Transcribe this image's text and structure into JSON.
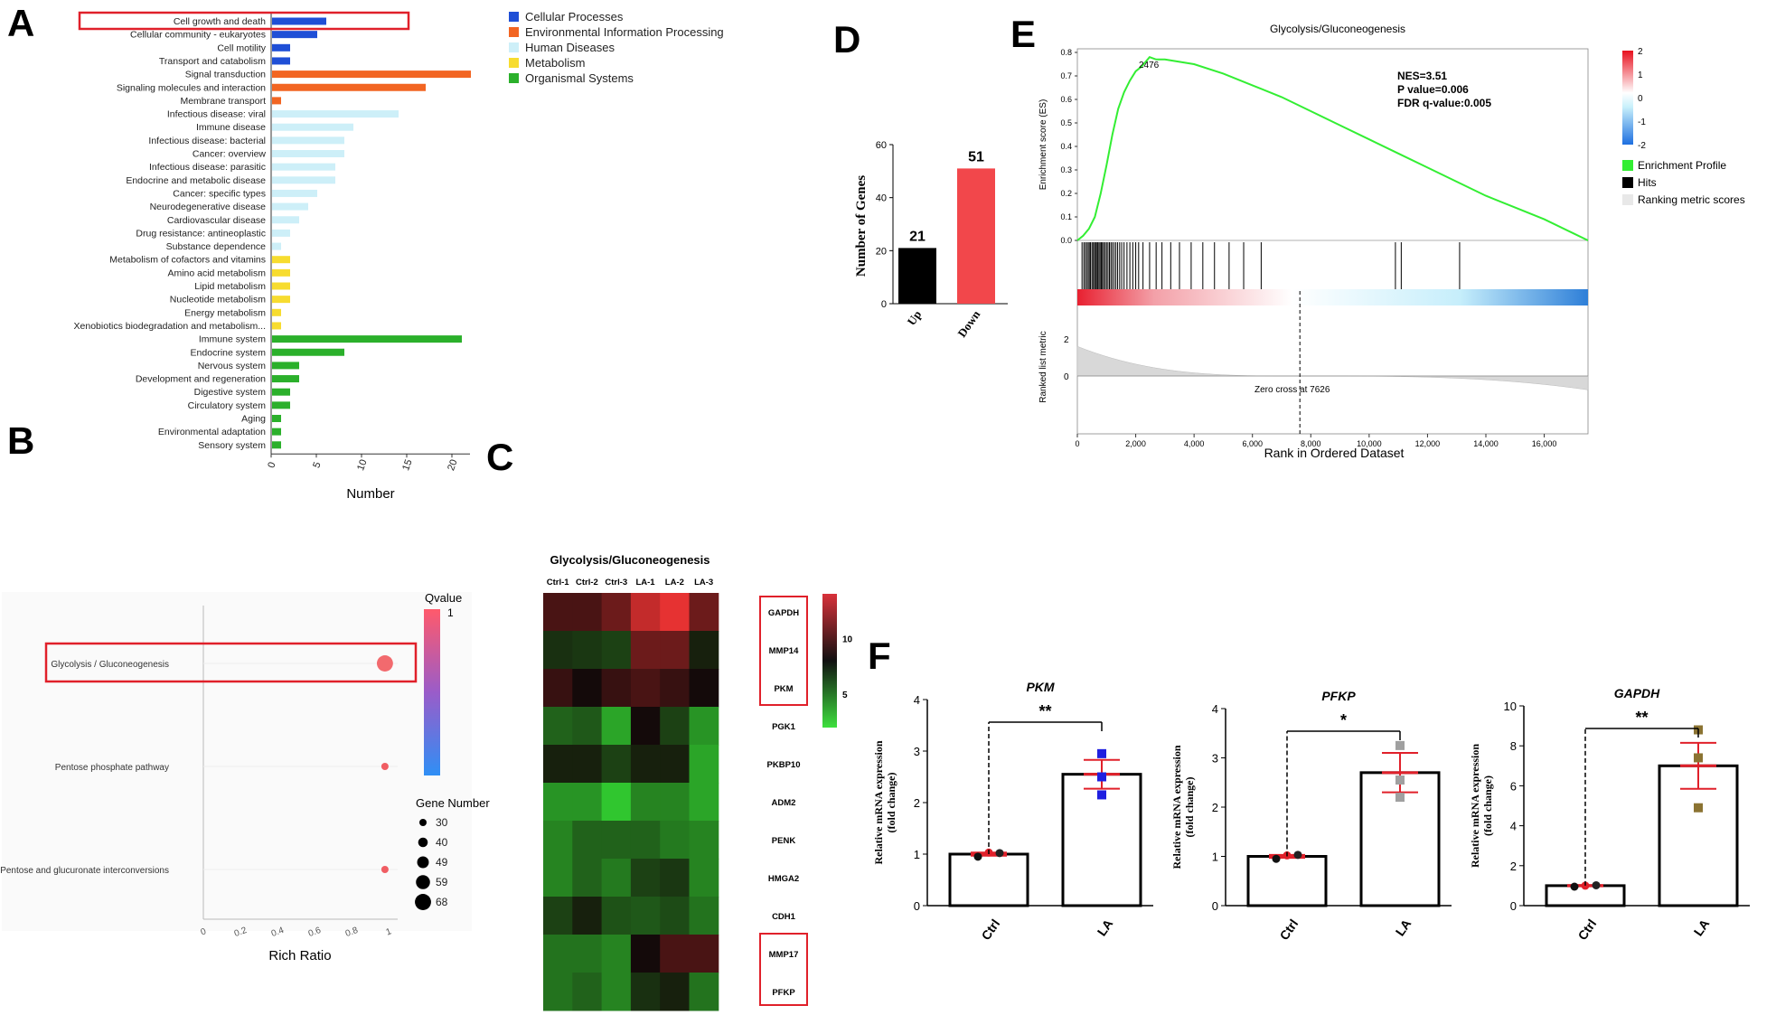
{
  "panel_letters": [
    "A",
    "B",
    "C",
    "D",
    "E",
    "F"
  ],
  "colors": {
    "cellular": "#1f4fd6",
    "environmental": "#f26522",
    "human": "#cdeff8",
    "metabolism": "#f7dc2f",
    "organismal": "#2bb02b",
    "highlight": "#e0202a",
    "gsea_line": "#33ee33",
    "bar_down": "#f2474b"
  },
  "chart_data": [
    {
      "id": "A",
      "type": "bar",
      "orientation": "horizontal",
      "xlabel": "Number",
      "xlim": [
        0,
        22
      ],
      "xticks": [
        0,
        5,
        10,
        15,
        20
      ],
      "legend": [
        "Cellular Processes",
        "Environmental Information Processing",
        "Human Diseases",
        "Metabolism",
        "Organismal Systems"
      ],
      "highlighted": "Cell growth and death",
      "categories": [
        "Cell growth and death",
        "Cellular community - eukaryotes",
        "Cell motility",
        "Transport and catabolism",
        "Signal transduction",
        "Signaling molecules and interaction",
        "Membrane transport",
        "Infectious disease: viral",
        "Immune disease",
        "Infectious disease: bacterial",
        "Cancer: overview",
        "Infectious disease: parasitic",
        "Endocrine and metabolic disease",
        "Cancer: specific types",
        "Neurodegenerative disease",
        "Cardiovascular disease",
        "Drug resistance: antineoplastic",
        "Substance dependence",
        "Metabolism of cofactors and vitamins",
        "Amino acid metabolism",
        "Lipid metabolism",
        "Nucleotide metabolism",
        "Energy metabolism",
        "Xenobiotics biodegradation and metabolism...",
        "Immune system",
        "Endocrine system",
        "Nervous system",
        "Development and regeneration",
        "Digestive system",
        "Circulatory system",
        "Aging",
        "Environmental adaptation",
        "Sensory system"
      ],
      "values": [
        6,
        5,
        2,
        2,
        22,
        17,
        1,
        14,
        9,
        8,
        8,
        7,
        7,
        5,
        4,
        3,
        2,
        1,
        2,
        2,
        2,
        2,
        1,
        1,
        21,
        8,
        3,
        3,
        2,
        2,
        1,
        1,
        1
      ],
      "groups": [
        0,
        0,
        0,
        0,
        1,
        1,
        1,
        2,
        2,
        2,
        2,
        2,
        2,
        2,
        2,
        2,
        2,
        2,
        3,
        3,
        3,
        3,
        3,
        3,
        4,
        4,
        4,
        4,
        4,
        4,
        4,
        4,
        4
      ]
    },
    {
      "id": "B",
      "type": "scatter",
      "xlabel": "Rich Ratio",
      "xlim": [
        0,
        1
      ],
      "xticks": [
        "0",
        "0.2",
        "0.4",
        "0.6",
        "0.8",
        "1"
      ],
      "categories": [
        "Glycolysis / Gluconeogenesis",
        "Pentose phosphate pathway",
        "Pentose and glucuronate interconversions"
      ],
      "x": [
        0.98,
        0.98,
        0.98
      ],
      "gene_number": [
        68,
        30,
        30
      ],
      "highlighted": "Glycolysis / Gluconeogenesis",
      "colorbar_title": "Qvalue",
      "colorbar_top_label": "1",
      "size_legend_title": "Gene Number",
      "size_legend": [
        30,
        40,
        49,
        59,
        68
      ]
    },
    {
      "id": "C",
      "type": "heatmap",
      "title": "Glycolysis/Gluconeogenesis",
      "columns": [
        "Ctrl-1",
        "Ctrl-2",
        "Ctrl-3",
        "LA-1",
        "LA-2",
        "LA-3"
      ],
      "rows": [
        "GAPDH",
        "MMP14",
        "PKM",
        "PGK1",
        "PKBP10",
        "ADM2",
        "PENK",
        "HMGA2",
        "CDH1",
        "MMP17",
        "PFKP"
      ],
      "values": [
        [
          9.5,
          9.5,
          10.5,
          13.0,
          14.0,
          10.5
        ],
        [
          7.0,
          6.8,
          6.5,
          10.5,
          10.5,
          7.5
        ],
        [
          9.0,
          8.0,
          9.0,
          9.5,
          9.0,
          8.0
        ],
        [
          5.5,
          5.8,
          3.5,
          8.0,
          6.5,
          4.0
        ],
        [
          7.5,
          7.5,
          6.5,
          7.5,
          7.5,
          3.5
        ],
        [
          4.0,
          4.0,
          2.5,
          4.5,
          4.5,
          3.5
        ],
        [
          4.5,
          5.5,
          5.5,
          5.5,
          4.8,
          4.5
        ],
        [
          4.5,
          5.5,
          4.8,
          6.5,
          6.8,
          4.5
        ],
        [
          6.5,
          7.5,
          6.0,
          5.8,
          6.2,
          5.0
        ],
        [
          5.0,
          5.0,
          4.5,
          8.0,
          9.5,
          9.5
        ],
        [
          5.0,
          5.5,
          4.5,
          7.0,
          7.5,
          5.0
        ]
      ],
      "highlighted_rows": [
        [
          "GAPDH",
          "MMP14",
          "PKM"
        ],
        [
          "MMP17",
          "PFKP"
        ]
      ],
      "colorbar_ticks": [
        5,
        10
      ],
      "colorbar_range": [
        2,
        14
      ]
    },
    {
      "id": "D",
      "type": "bar",
      "ylabel": "Number of Genes",
      "categories": [
        "Up",
        "Down"
      ],
      "values": [
        21,
        51
      ],
      "ylim": [
        0,
        60
      ],
      "yticks": [
        0,
        20,
        40,
        60
      ]
    },
    {
      "id": "E",
      "type": "line",
      "title": "Glycolysis/Gluconeogenesis",
      "ylabel": "Enrichment score (ES)",
      "ylabel2": "Ranked list metric",
      "xlabel": "Rank in Ordered Dataset",
      "yticks": [
        "0.0",
        "0.1",
        "0.2",
        "0.3",
        "0.4",
        "0.5",
        "0.6",
        "0.7",
        "0.8"
      ],
      "xticks": [
        "0",
        "2,000",
        "4,000",
        "6,000",
        "8,000",
        "10,000",
        "12,000",
        "14,000",
        "16,000"
      ],
      "xlim": [
        0,
        17500
      ],
      "ylim": [
        0,
        0.8
      ],
      "x": [
        0,
        200,
        400,
        600,
        800,
        1000,
        1200,
        1400,
        1600,
        1800,
        2000,
        2200,
        2476,
        2700,
        3000,
        3500,
        4000,
        5000,
        6000,
        7000,
        8000,
        9000,
        10000,
        11000,
        12000,
        13000,
        14000,
        15000,
        16000,
        17000,
        17500
      ],
      "y": [
        0,
        0.02,
        0.05,
        0.1,
        0.2,
        0.32,
        0.45,
        0.56,
        0.63,
        0.68,
        0.72,
        0.74,
        0.78,
        0.77,
        0.77,
        0.76,
        0.75,
        0.71,
        0.66,
        0.61,
        0.55,
        0.49,
        0.43,
        0.37,
        0.31,
        0.25,
        0.19,
        0.14,
        0.09,
        0.03,
        0
      ],
      "peak_label": "2476",
      "stats": [
        "NES=3.51",
        "P value=0.006",
        "FDR q-value:0.005"
      ],
      "hits": [
        160,
        220,
        270,
        320,
        370,
        410,
        450,
        500,
        540,
        590,
        620,
        660,
        700,
        740,
        780,
        820,
        860,
        900,
        950,
        1000,
        1050,
        1100,
        1150,
        1200,
        1260,
        1320,
        1380,
        1450,
        1520,
        1600,
        1700,
        1800,
        1900,
        2000,
        2100,
        2250,
        2476,
        2700,
        2900,
        3200,
        3500,
        3900,
        4300,
        4700,
        5200,
        5700,
        6300,
        10900,
        11100,
        13100
      ],
      "metric_ticks": [
        "2",
        "0"
      ],
      "zero_cross": 7626,
      "zero_cross_label": "Zero cross at 7626",
      "colorbar_ticks": [
        "2",
        "1",
        "0",
        "-1",
        "-2"
      ],
      "legend": [
        "Enrichment Profile",
        "Hits",
        "Ranking metric scores"
      ]
    },
    {
      "id": "F",
      "type": "bar",
      "ylabel": "Relative mRNA expression (fold change)",
      "ylabel_lines": [
        "Relative mRNA expression",
        "(fold change)"
      ],
      "categories": [
        "Ctrl",
        "LA"
      ],
      "panels": [
        {
          "title": "PKM",
          "values": [
            1.0,
            2.55
          ],
          "err": [
            0.03,
            0.28
          ],
          "ylim": [
            0,
            4
          ],
          "yticks": [
            0,
            1,
            2,
            3,
            4
          ],
          "sig": "**",
          "points": [
            [
              0.95,
              1.03,
              1.02
            ],
            [
              2.95,
              2.5,
              2.15
            ]
          ],
          "colors": [
            "#111111",
            "#e0202a",
            "#222222",
            "#1f1fe0",
            "#1f1fe0",
            "#1f1fe0"
          ]
        },
        {
          "title": "PFKP",
          "values": [
            1.0,
            2.7
          ],
          "err": [
            0.03,
            0.4
          ],
          "ylim": [
            0,
            4
          ],
          "yticks": [
            0,
            1,
            2,
            3,
            4
          ],
          "sig": "*",
          "points": [
            [
              0.95,
              1.02,
              1.03
            ],
            [
              3.25,
              2.55,
              2.2
            ]
          ],
          "colors": [
            "#111111",
            "#e0202a",
            "#222222",
            "#a0a0a0",
            "#a0a0a0",
            "#a0a0a0"
          ]
        },
        {
          "title": "GAPDH",
          "values": [
            1.0,
            7.0
          ],
          "err": [
            0.03,
            1.15
          ],
          "ylim": [
            0,
            10
          ],
          "yticks": [
            0,
            2,
            4,
            6,
            8,
            10
          ],
          "sig": "**",
          "points": [
            [
              0.95,
              1.0,
              1.02
            ],
            [
              8.8,
              7.4,
              4.9
            ]
          ],
          "colors": [
            "#111111",
            "#e0202a",
            "#222222",
            "#8b7332",
            "#8b7332",
            "#8b7332"
          ]
        }
      ]
    }
  ]
}
